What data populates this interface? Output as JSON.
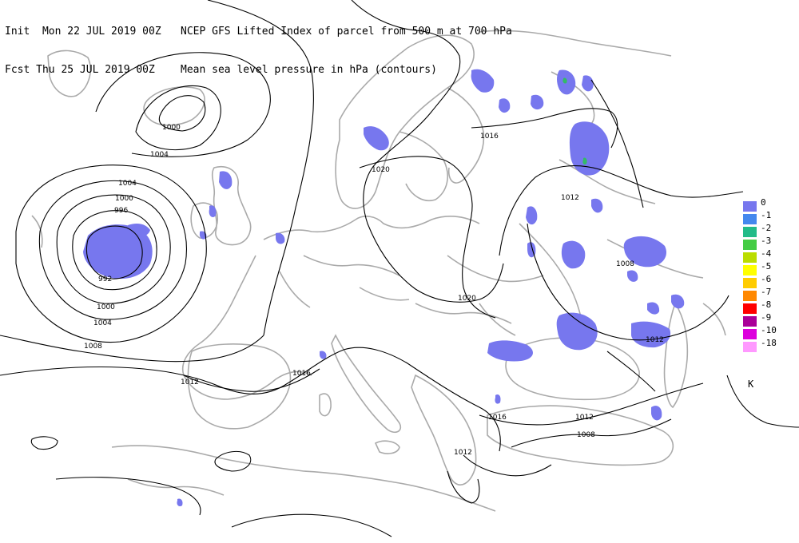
{
  "header": {
    "line1_left": "Init  Mon 22 JUL 2019 00Z",
    "line1_right": "NCEP GFS Lifted Index of parcel from 500 m at 700 hPa",
    "line2_left": "Fcst Thu 25 JUL 2019 00Z",
    "line2_right": "Mean sea level pressure in hPa (contours)"
  },
  "colors": {
    "li_fill": "#7777ee",
    "li_fill_2": "#33bb66",
    "coast": "#aaaaaa",
    "isobar": "#000000"
  },
  "legend": {
    "unit": "K",
    "items": [
      {
        "label": "0",
        "color": "#7777ee"
      },
      {
        "label": "-1",
        "color": "#4488ee"
      },
      {
        "label": "-2",
        "color": "#22bb88"
      },
      {
        "label": "-3",
        "color": "#44cc44"
      },
      {
        "label": "-4",
        "color": "#bbdd00"
      },
      {
        "label": "-5",
        "color": "#ffff00"
      },
      {
        "label": "-6",
        "color": "#ffcc00"
      },
      {
        "label": "-7",
        "color": "#ff8800"
      },
      {
        "label": "-8",
        "color": "#ff0000"
      },
      {
        "label": "-9",
        "color": "#aa0099"
      },
      {
        "label": "-10",
        "color": "#dd00dd"
      },
      {
        "label": "-18",
        "color": "#ff99ff"
      }
    ]
  },
  "isobar_labels": {
    "l1000_a": "1000",
    "l1004_a": "1004",
    "l1004_b": "1004",
    "l1000_b": "1000",
    "l996": "996",
    "l992": "992",
    "l1000_c": "1000",
    "l1004_c": "1004",
    "l1008_a": "1008",
    "l1012_a": "1012",
    "l1016_a": "1016",
    "l1020_a": "1020",
    "l1016_b": "1016",
    "l1012_b": "1012",
    "l1008_b": "1008",
    "l1020_b": "1020",
    "l1012_c": "1012",
    "l1016_c": "1016",
    "l1012_d": "1012",
    "l1008_c": "1008",
    "l1012_e": "1012"
  }
}
